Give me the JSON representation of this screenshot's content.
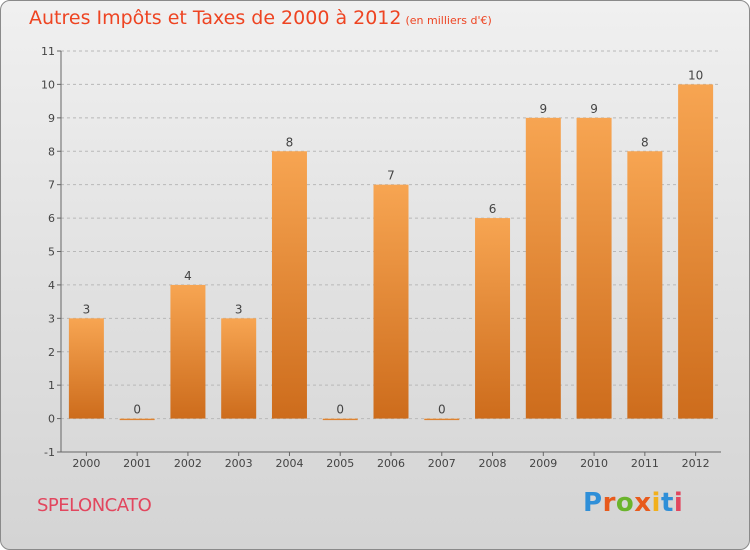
{
  "title": "Autres Impôts et Taxes de 2000 à 2012",
  "subtitle": "(en milliers d'€)",
  "city": "SPELONCATO",
  "logo": "Proxiti",
  "colors": {
    "title": "#ee4422",
    "bar_light": "#f7a552",
    "bar_dark": "#cd6c1c",
    "city": "#e2465e",
    "logo_letters": [
      "#2f8fd8",
      "#e85a1c",
      "#6ab42c",
      "#e85a1c",
      "#f2b01c",
      "#2f8fd8",
      "#e2465e"
    ]
  },
  "chart_data": {
    "type": "bar",
    "title": "Autres Impôts et Taxes de 2000 à 2012",
    "subtitle": "(en milliers d'€)",
    "categories": [
      "2000",
      "2001",
      "2002",
      "2003",
      "2004",
      "2005",
      "2006",
      "2007",
      "2008",
      "2009",
      "2010",
      "2011",
      "2012"
    ],
    "values": [
      3,
      0,
      4,
      3,
      8,
      0,
      7,
      0,
      6,
      9,
      9,
      8,
      10
    ],
    "data_labels": [
      "3",
      "0",
      "4",
      "3",
      "8",
      "0",
      "7",
      "0",
      "6",
      "9",
      "9",
      "8",
      "10"
    ],
    "ylim": [
      -1,
      11
    ],
    "yticks": [
      -1,
      0,
      1,
      2,
      3,
      4,
      5,
      6,
      7,
      8,
      9,
      10,
      11
    ],
    "ytick_labels": [
      "-1",
      "0",
      "1",
      "2",
      "3",
      "4",
      "5",
      "6",
      "7",
      "8",
      "9",
      "10",
      "11"
    ],
    "xlabel": "",
    "ylabel": "",
    "grid": "horizontal dashed",
    "legend": "none"
  }
}
